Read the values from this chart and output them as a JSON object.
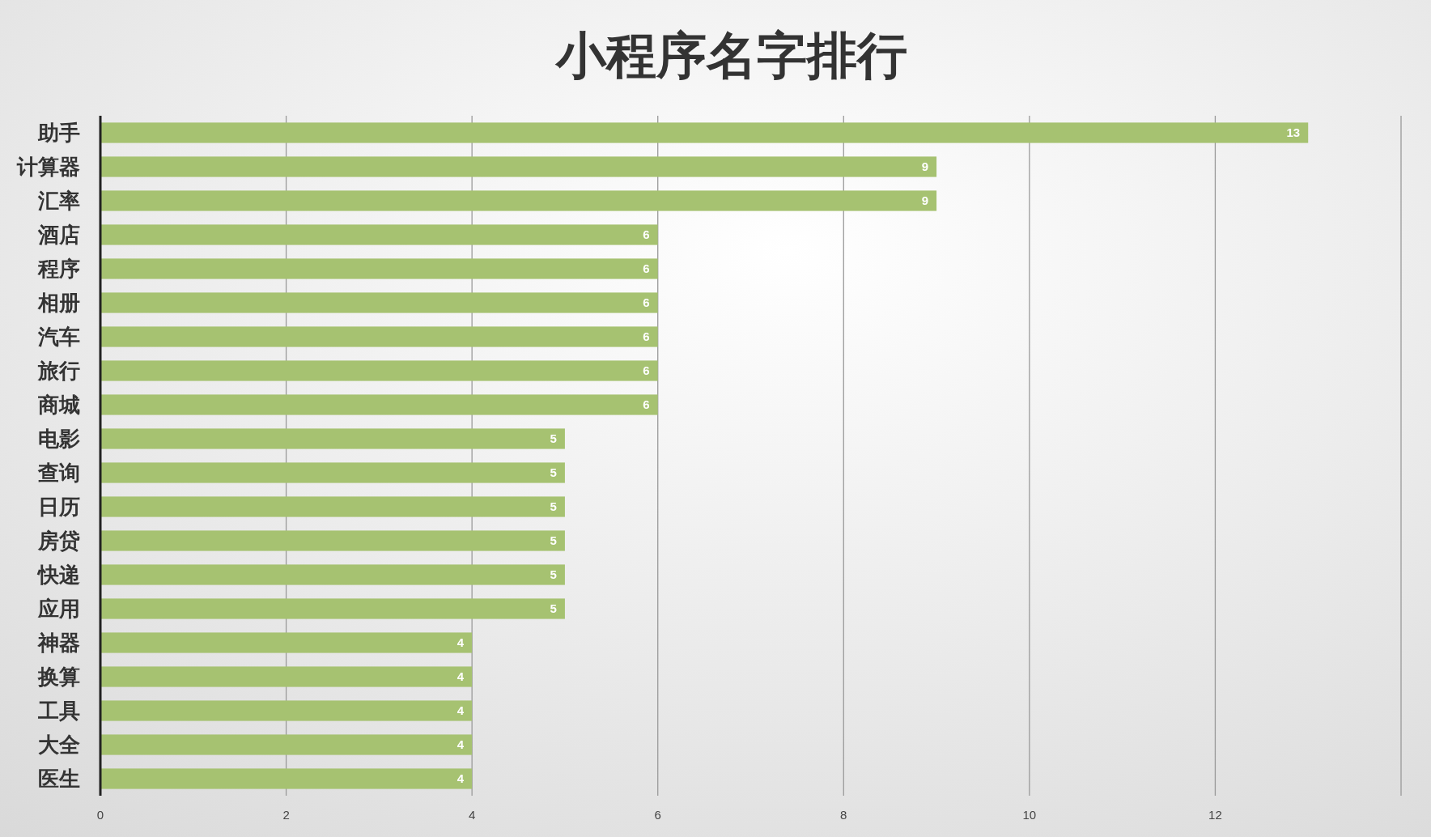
{
  "chart_data": {
    "type": "bar",
    "orientation": "horizontal",
    "title": "小程序名字排行",
    "categories": [
      "助手",
      "计算器",
      "汇率",
      "酒店",
      "程序",
      "相册",
      "汽车",
      "旅行",
      "商城",
      "电影",
      "查询",
      "日历",
      "房贷",
      "快递",
      "应用",
      "神器",
      "换算",
      "工具",
      "大全",
      "医生"
    ],
    "values": [
      13,
      9,
      9,
      6,
      6,
      6,
      6,
      6,
      6,
      5,
      5,
      5,
      5,
      5,
      5,
      4,
      4,
      4,
      4,
      4
    ],
    "color": "#a6c271",
    "xlim": [
      0,
      14
    ],
    "xticks": [
      0,
      2,
      4,
      6,
      8,
      10,
      12,
      {
        "value": 14,
        "label": null
      }
    ],
    "grid": "x",
    "data_labels": true
  }
}
